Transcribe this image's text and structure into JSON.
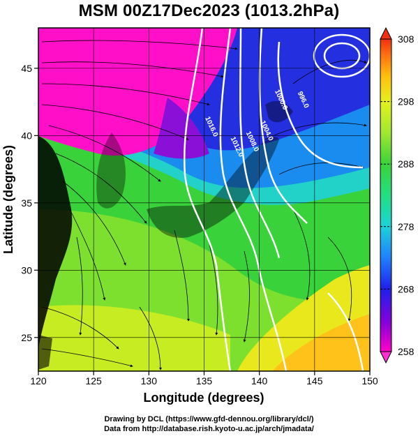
{
  "title": "MSM 00Z17Dec2023 (1013.2hPa)",
  "axes": {
    "xlabel": "Longitude (degrees)",
    "ylabel": "Latitude  (degrees)",
    "xlim": [
      120,
      150
    ],
    "ylim": [
      22.5,
      48
    ],
    "xticks": [
      120,
      125,
      130,
      135,
      140,
      145,
      150
    ],
    "yticks": [
      25,
      30,
      35,
      40,
      45
    ],
    "grid": true
  },
  "colorbar": {
    "min": 258,
    "max": 308,
    "labels": [
      308,
      298,
      288,
      278,
      268,
      258
    ],
    "colors": [
      "#ff00c8",
      "#8a00d8",
      "#1f20e8",
      "#1f80ff",
      "#1ed2d8",
      "#22e080",
      "#3ad23a",
      "#a0e830",
      "#e4f020",
      "#ffc010",
      "#ff7010",
      "#f03010"
    ]
  },
  "isobars": [
    {
      "label": "1016.0",
      "lon": 135.5,
      "lat": 40.6
    },
    {
      "label": "1012.0",
      "lon": 137.8,
      "lat": 39.1
    },
    {
      "label": "1008.0",
      "lon": 139.2,
      "lat": 39.5
    },
    {
      "label": "1004.0",
      "lon": 140.5,
      "lat": 40.3
    },
    {
      "label": "1000.0",
      "lon": 141.8,
      "lat": 42.6
    },
    {
      "label": "996.0",
      "lon": 143.8,
      "lat": 42.6
    }
  ],
  "credits": {
    "line1": "Drawing by DCL (https://www.gfd-dennou.org/library/dcl/)",
    "line2": "Data from http://database.rish.kyoto-u.ac.jp/arch/jmadata/"
  },
  "colors": {
    "land": "#000000",
    "isobar": "#ffffff",
    "streamline": "#000000"
  }
}
